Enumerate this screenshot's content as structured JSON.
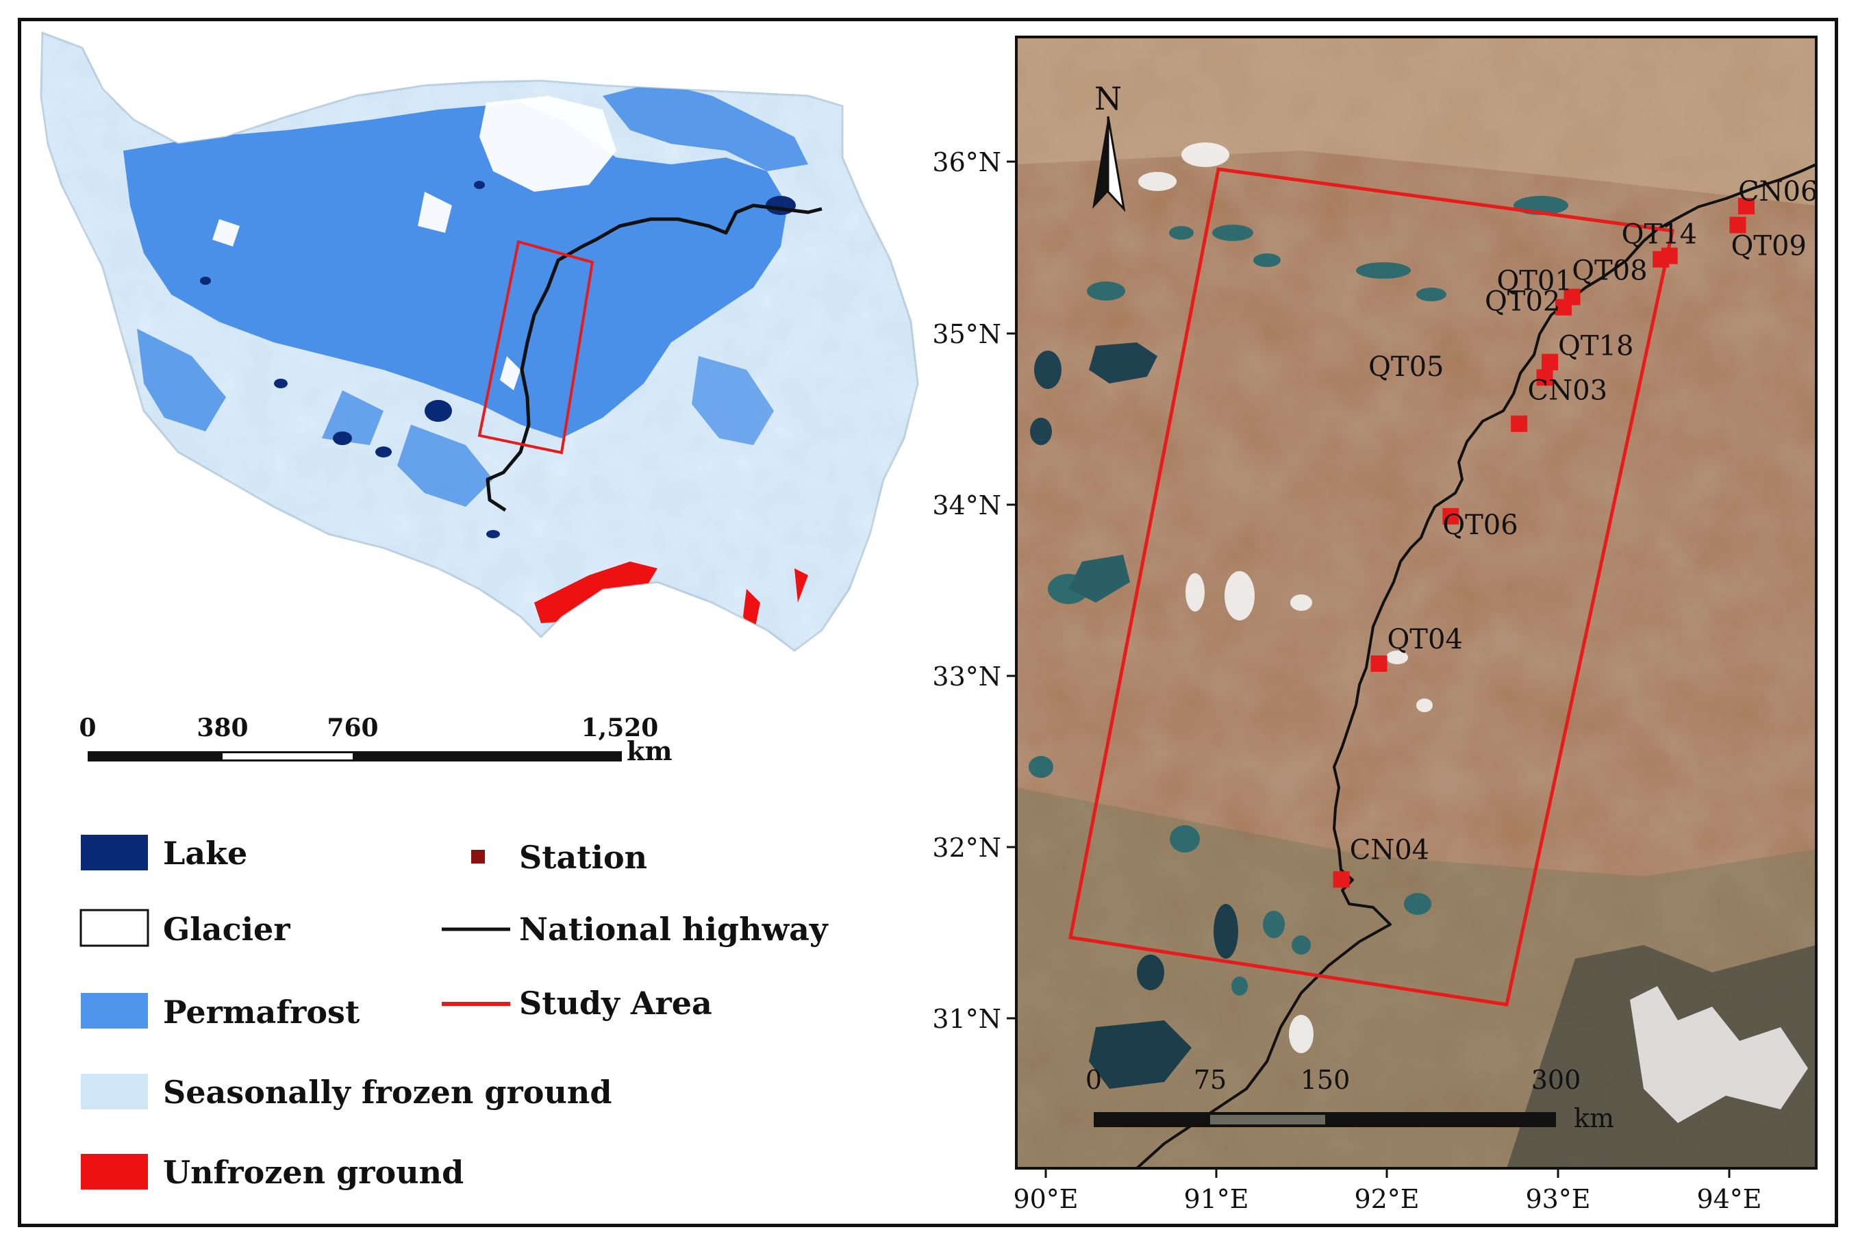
{
  "overview_map": {
    "scale_bar": {
      "ticks": [
        "0",
        "380",
        "760",
        "1,520"
      ],
      "unit": "km"
    }
  },
  "legend": {
    "items": [
      {
        "label": "Lake",
        "color": "#0a2a78",
        "kind": "fill"
      },
      {
        "label": "Glacier",
        "color": "#ffffff",
        "kind": "fill"
      },
      {
        "label": "Permafrost",
        "color": "#4d94ea",
        "kind": "fill"
      },
      {
        "label": "Seasonally frozen ground",
        "color": "#cfe6f7",
        "kind": "fill"
      },
      {
        "label": "Unfrozen ground",
        "color": "#ee1111",
        "kind": "fill"
      },
      {
        "label": "Station",
        "color": "#8b1010",
        "kind": "point"
      },
      {
        "label": "National highway",
        "color": "#111111",
        "kind": "line"
      },
      {
        "label": "Study Area",
        "color": "#e81b1b",
        "kind": "line"
      }
    ]
  },
  "detail_map": {
    "north_label": "N",
    "lat_labels": [
      "36°N",
      "35°N",
      "34°N",
      "33°N",
      "32°N",
      "31°N"
    ],
    "lon_labels": [
      "90°E",
      "91°E",
      "92°E",
      "93°E",
      "94°E"
    ],
    "scale_bar": {
      "ticks": [
        "0",
        "75",
        "150",
        "300"
      ],
      "unit": "km"
    },
    "stations": [
      {
        "name": "CN06",
        "lon": 94.1,
        "lat": 35.74
      },
      {
        "name": "QT09",
        "lon": 94.05,
        "lat": 35.63
      },
      {
        "name": "QT14",
        "lon": 93.65,
        "lat": 35.45
      },
      {
        "name": "QT08",
        "lon": 93.6,
        "lat": 35.43
      },
      {
        "name": "QT01",
        "lon": 93.08,
        "lat": 35.21
      },
      {
        "name": "QT02",
        "lon": 93.03,
        "lat": 35.15
      },
      {
        "name": "QT18",
        "lon": 92.95,
        "lat": 34.83
      },
      {
        "name": "CN03",
        "lon": 92.92,
        "lat": 34.74
      },
      {
        "name": "QT05",
        "lon": 92.77,
        "lat": 34.47
      },
      {
        "name": "QT06",
        "lon": 92.37,
        "lat": 33.93
      },
      {
        "name": "QT04",
        "lon": 91.95,
        "lat": 33.07
      },
      {
        "name": "CN04",
        "lon": 91.73,
        "lat": 31.81
      }
    ]
  },
  "colors": {
    "satellite_base": "#a67a5c",
    "lake_dark": "#1f3f52",
    "highway": "#111111",
    "study_area": "#e81b1b",
    "station": "#e61a1a"
  }
}
